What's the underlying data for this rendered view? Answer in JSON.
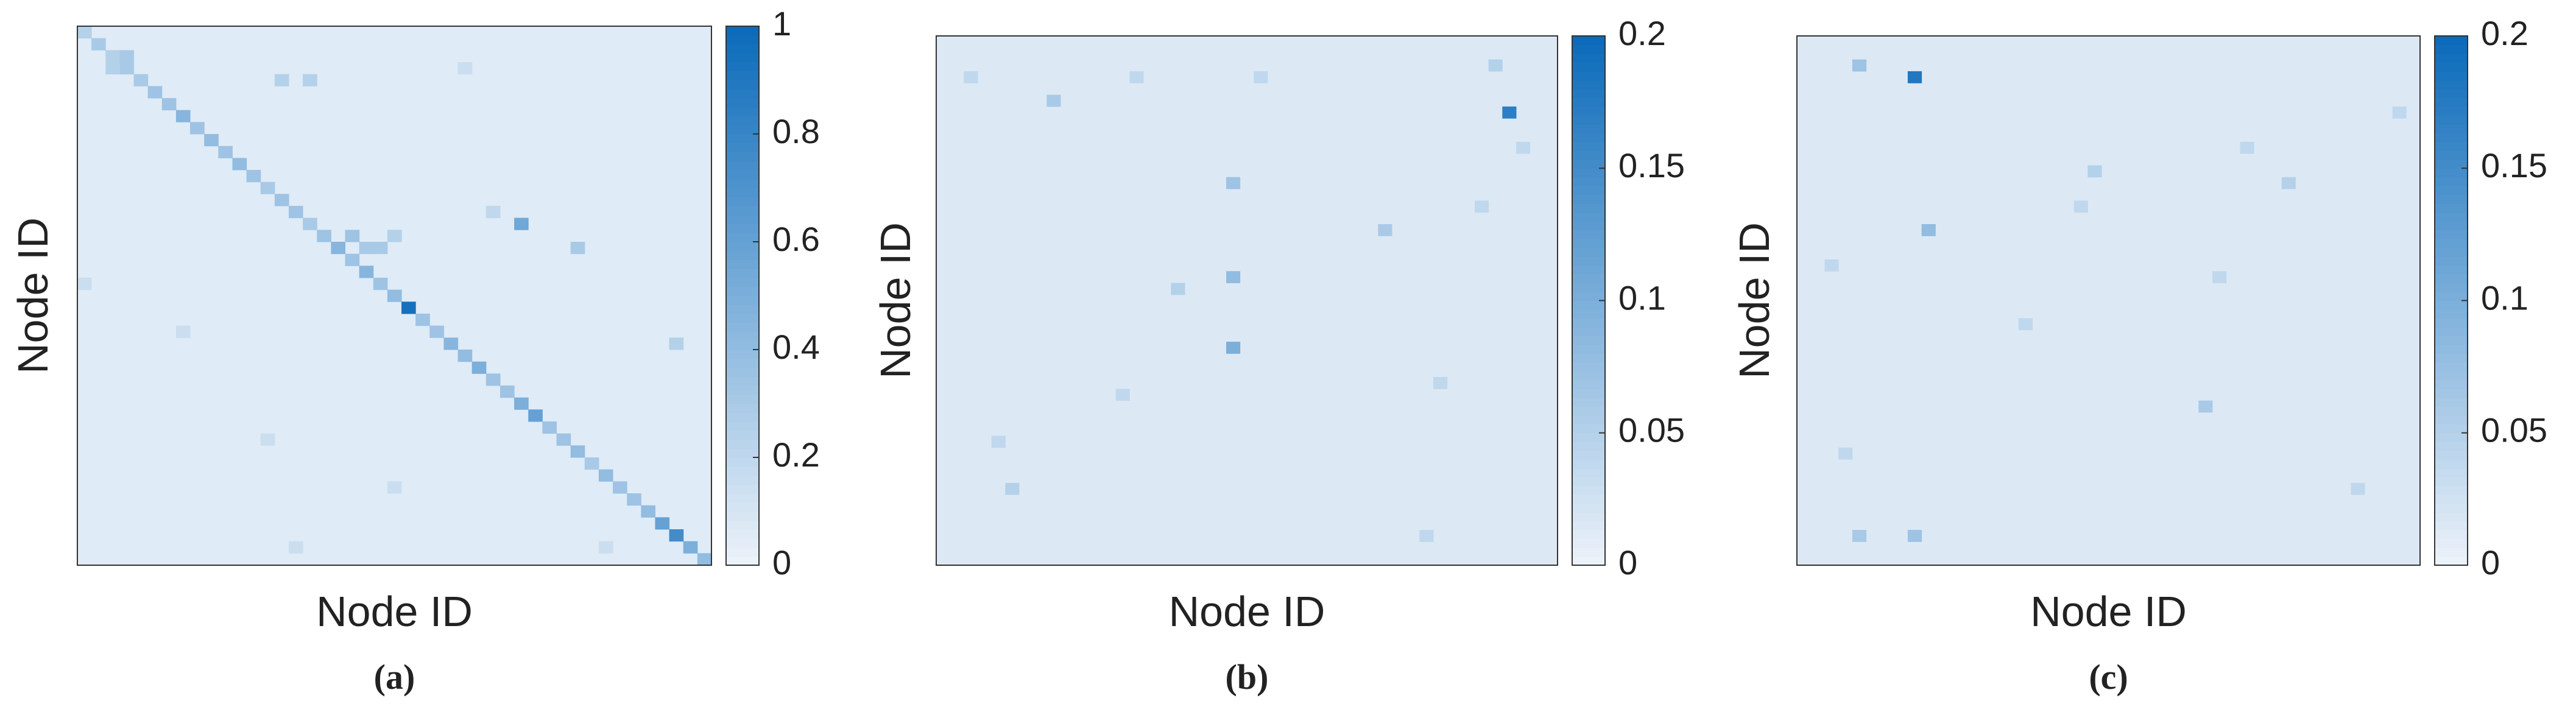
{
  "chart_data": [
    {
      "type": "heatmap",
      "caption": "(a)",
      "xlabel": "Node ID",
      "ylabel": "Node ID",
      "size": 45,
      "base": 0.06,
      "cells": [
        [
          0,
          0,
          0.25
        ],
        [
          1,
          1,
          0.3
        ],
        [
          2,
          2,
          0.25
        ],
        [
          3,
          3,
          0.3
        ],
        [
          4,
          4,
          0.3
        ],
        [
          5,
          5,
          0.35
        ],
        [
          6,
          6,
          0.35
        ],
        [
          7,
          7,
          0.45
        ],
        [
          8,
          8,
          0.35
        ],
        [
          9,
          9,
          0.4
        ],
        [
          10,
          10,
          0.35
        ],
        [
          11,
          11,
          0.4
        ],
        [
          12,
          12,
          0.35
        ],
        [
          13,
          13,
          0.3
        ],
        [
          14,
          14,
          0.35
        ],
        [
          15,
          15,
          0.35
        ],
        [
          16,
          16,
          0.3
        ],
        [
          17,
          17,
          0.35
        ],
        [
          18,
          18,
          0.45
        ],
        [
          19,
          19,
          0.35
        ],
        [
          20,
          20,
          0.45
        ],
        [
          21,
          21,
          0.35
        ],
        [
          22,
          22,
          0.4
        ],
        [
          23,
          23,
          0.95
        ],
        [
          24,
          24,
          0.35
        ],
        [
          25,
          25,
          0.35
        ],
        [
          26,
          26,
          0.45
        ],
        [
          27,
          27,
          0.4
        ],
        [
          28,
          28,
          0.5
        ],
        [
          29,
          29,
          0.35
        ],
        [
          30,
          30,
          0.35
        ],
        [
          31,
          31,
          0.5
        ],
        [
          32,
          32,
          0.6
        ],
        [
          33,
          33,
          0.35
        ],
        [
          34,
          34,
          0.35
        ],
        [
          35,
          35,
          0.4
        ],
        [
          36,
          36,
          0.3
        ],
        [
          37,
          37,
          0.4
        ],
        [
          38,
          38,
          0.35
        ],
        [
          39,
          39,
          0.35
        ],
        [
          40,
          40,
          0.4
        ],
        [
          41,
          41,
          0.6
        ],
        [
          42,
          42,
          0.75
        ],
        [
          43,
          43,
          0.5
        ],
        [
          44,
          44,
          0.4
        ],
        [
          16,
          31,
          0.55
        ],
        [
          18,
          35,
          0.3
        ],
        [
          2,
          3,
          0.3
        ],
        [
          3,
          2,
          0.25
        ],
        [
          4,
          14,
          0.25
        ],
        [
          4,
          16,
          0.25
        ],
        [
          17,
          19,
          0.35
        ],
        [
          18,
          20,
          0.3
        ],
        [
          18,
          21,
          0.3
        ],
        [
          17,
          22,
          0.25
        ],
        [
          15,
          29,
          0.2
        ],
        [
          21,
          0,
          0.15
        ],
        [
          25,
          7,
          0.15
        ],
        [
          26,
          42,
          0.25
        ],
        [
          34,
          13,
          0.15
        ],
        [
          38,
          22,
          0.15
        ],
        [
          43,
          15,
          0.15
        ],
        [
          43,
          37,
          0.15
        ],
        [
          3,
          27,
          0.15
        ]
      ],
      "clim": [
        0,
        1
      ],
      "cticks": [
        0,
        0.2,
        0.4,
        0.6,
        0.8,
        1
      ],
      "colormap": [
        "#edf3fa",
        "#0a6aba"
      ]
    },
    {
      "type": "heatmap",
      "caption": "(b)",
      "xlabel": "Node ID",
      "ylabel": "Node ID",
      "size": 45,
      "base": 0.015,
      "cells": [
        [
          6,
          41,
          0.17
        ],
        [
          26,
          21,
          0.1
        ],
        [
          20,
          21,
          0.08
        ],
        [
          12,
          21,
          0.07
        ],
        [
          16,
          32,
          0.06
        ],
        [
          5,
          8,
          0.06
        ],
        [
          3,
          2,
          0.04
        ],
        [
          3,
          14,
          0.04
        ],
        [
          3,
          23,
          0.04
        ],
        [
          2,
          40,
          0.05
        ],
        [
          21,
          17,
          0.05
        ],
        [
          29,
          36,
          0.04
        ],
        [
          38,
          5,
          0.05
        ],
        [
          42,
          35,
          0.04
        ],
        [
          14,
          39,
          0.04
        ],
        [
          34,
          4,
          0.04
        ],
        [
          30,
          13,
          0.04
        ],
        [
          9,
          42,
          0.04
        ]
      ],
      "clim": [
        0,
        0.2
      ],
      "cticks": [
        0,
        0.05,
        0.1,
        0.15,
        0.2
      ],
      "colormap": [
        "#edf3fa",
        "#0a6aba"
      ]
    },
    {
      "type": "heatmap",
      "caption": "(c)",
      "xlabel": "Node ID",
      "ylabel": "Node ID",
      "size": 45,
      "base": 0.015,
      "cells": [
        [
          3,
          8,
          0.18
        ],
        [
          16,
          9,
          0.08
        ],
        [
          2,
          4,
          0.07
        ],
        [
          42,
          8,
          0.07
        ],
        [
          42,
          4,
          0.06
        ],
        [
          31,
          29,
          0.06
        ],
        [
          11,
          21,
          0.05
        ],
        [
          12,
          35,
          0.05
        ],
        [
          9,
          32,
          0.04
        ],
        [
          14,
          20,
          0.04
        ],
        [
          20,
          30,
          0.04
        ],
        [
          35,
          3,
          0.04
        ],
        [
          38,
          40,
          0.04
        ],
        [
          24,
          16,
          0.04
        ],
        [
          6,
          43,
          0.04
        ],
        [
          19,
          2,
          0.04
        ]
      ],
      "clim": [
        0,
        0.2
      ],
      "cticks": [
        0,
        0.05,
        0.1,
        0.15,
        0.2
      ],
      "colormap": [
        "#edf3fa",
        "#0a6aba"
      ]
    }
  ]
}
